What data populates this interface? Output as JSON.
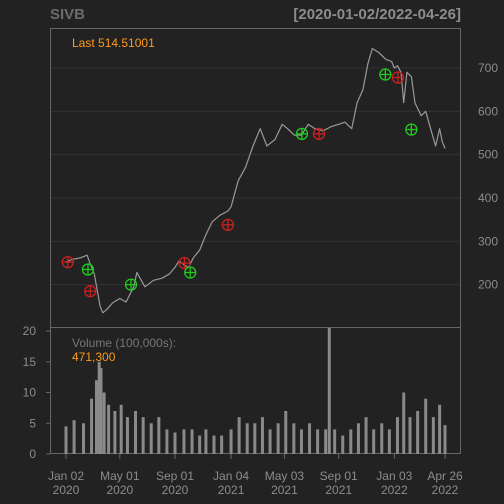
{
  "chart_data": {
    "type": "line",
    "title": "SIVB",
    "date_range": "[2020-01-02/2022-04-26]",
    "last_label": "Last 514.51001",
    "colors": {
      "background": "#222222",
      "price_line": "#999999",
      "buy_marker": "#1fcc1f",
      "sell_marker": "#cc2020",
      "last_label": "#ff9a1a",
      "volume_bars": "#8a8a8a",
      "grid": "#333333",
      "axis_text": "#8c8c8c"
    },
    "x_ticks": [
      {
        "date": "2020-01-02",
        "line1": "Jan 02",
        "line2": "2020"
      },
      {
        "date": "2020-05-01",
        "line1": "May 01",
        "line2": "2020"
      },
      {
        "date": "2020-09-01",
        "line1": "Sep 01",
        "line2": "2020"
      },
      {
        "date": "2021-01-04",
        "line1": "Jan 04",
        "line2": "2021"
      },
      {
        "date": "2021-05-03",
        "line1": "May 03",
        "line2": "2021"
      },
      {
        "date": "2021-09-01",
        "line1": "Sep 01",
        "line2": "2021"
      },
      {
        "date": "2022-01-03",
        "line1": "Jan 03",
        "line2": "2022"
      },
      {
        "date": "2022-04-26",
        "line1": "Apr 26",
        "line2": "2022"
      }
    ],
    "price_panel": {
      "y_ticks": [
        200,
        300,
        400,
        500,
        600,
        700
      ],
      "ylim": [
        100,
        790
      ],
      "grid": true,
      "series": [
        {
          "values": [
            [
              "2020-01-02",
              252
            ],
            [
              "2020-01-15",
              258
            ],
            [
              "2020-02-03",
              262
            ],
            [
              "2020-02-18",
              268
            ],
            [
              "2020-02-25",
              248
            ],
            [
              "2020-03-05",
              225
            ],
            [
              "2020-03-12",
              185
            ],
            [
              "2020-03-18",
              150
            ],
            [
              "2020-03-24",
              135
            ],
            [
              "2020-04-01",
              142
            ],
            [
              "2020-04-15",
              158
            ],
            [
              "2020-05-01",
              168
            ],
            [
              "2020-05-15",
              160
            ],
            [
              "2020-06-01",
              195
            ],
            [
              "2020-06-08",
              228
            ],
            [
              "2020-06-26",
              195
            ],
            [
              "2020-07-15",
              210
            ],
            [
              "2020-08-03",
              215
            ],
            [
              "2020-08-20",
              225
            ],
            [
              "2020-09-01",
              240
            ],
            [
              "2020-09-10",
              255
            ],
            [
              "2020-09-22",
              245
            ],
            [
              "2020-10-01",
              240
            ],
            [
              "2020-10-12",
              262
            ],
            [
              "2020-10-26",
              280
            ],
            [
              "2020-11-09",
              315
            ],
            [
              "2020-11-23",
              345
            ],
            [
              "2020-12-10",
              360
            ],
            [
              "2020-12-28",
              370
            ],
            [
              "2021-01-04",
              380
            ],
            [
              "2021-01-20",
              440
            ],
            [
              "2021-02-05",
              470
            ],
            [
              "2021-02-22",
              520
            ],
            [
              "2021-03-10",
              560
            ],
            [
              "2021-03-25",
              520
            ],
            [
              "2021-04-12",
              535
            ],
            [
              "2021-04-28",
              570
            ],
            [
              "2021-05-10",
              560
            ],
            [
              "2021-05-25",
              545
            ],
            [
              "2021-06-10",
              545
            ],
            [
              "2021-06-25",
              570
            ],
            [
              "2021-07-10",
              560
            ],
            [
              "2021-07-28",
              555
            ],
            [
              "2021-08-16",
              565
            ],
            [
              "2021-09-01",
              570
            ],
            [
              "2021-09-15",
              575
            ],
            [
              "2021-09-30",
              560
            ],
            [
              "2021-10-12",
              620
            ],
            [
              "2021-10-25",
              650
            ],
            [
              "2021-11-05",
              710
            ],
            [
              "2021-11-15",
              745
            ],
            [
              "2021-11-30",
              735
            ],
            [
              "2021-12-15",
              720
            ],
            [
              "2021-12-28",
              715
            ],
            [
              "2022-01-03",
              700
            ],
            [
              "2022-01-10",
              705
            ],
            [
              "2022-01-18",
              690
            ],
            [
              "2022-01-24",
              620
            ],
            [
              "2022-01-31",
              690
            ],
            [
              "2022-02-10",
              680
            ],
            [
              "2022-02-18",
              620
            ],
            [
              "2022-03-04",
              590
            ],
            [
              "2022-03-14",
              600
            ],
            [
              "2022-03-25",
              560
            ],
            [
              "2022-04-05",
              520
            ],
            [
              "2022-04-14",
              560
            ],
            [
              "2022-04-20",
              530
            ],
            [
              "2022-04-26",
              514.51
            ]
          ]
        }
      ],
      "buy_signals": [
        [
          "2020-02-20",
          235
        ],
        [
          "2020-05-26",
          200
        ],
        [
          "2020-10-05",
          228
        ],
        [
          "2021-06-11",
          548
        ],
        [
          "2021-12-14",
          685
        ],
        [
          "2022-02-10",
          558
        ]
      ],
      "sell_signals": [
        [
          "2020-01-06",
          252
        ],
        [
          "2020-02-25",
          185
        ],
        [
          "2020-09-22",
          250
        ],
        [
          "2020-12-28",
          338
        ],
        [
          "2021-07-19",
          548
        ],
        [
          "2022-01-11",
          678
        ]
      ]
    },
    "volume_panel": {
      "label": "Volume (100,000s):",
      "last_value": "471,300",
      "y_ticks": [
        0,
        5,
        10,
        15,
        20
      ],
      "ylim": [
        0,
        20.5
      ],
      "values": [
        [
          "2020-01-02",
          4.5
        ],
        [
          "2020-01-20",
          5.5
        ],
        [
          "2020-02-10",
          5
        ],
        [
          "2020-02-28",
          9
        ],
        [
          "2020-03-10",
          12
        ],
        [
          "2020-03-16",
          15
        ],
        [
          "2020-03-20",
          14
        ],
        [
          "2020-03-27",
          10
        ],
        [
          "2020-04-06",
          8
        ],
        [
          "2020-04-20",
          7
        ],
        [
          "2020-05-04",
          8
        ],
        [
          "2020-05-18",
          6
        ],
        [
          "2020-06-05",
          7
        ],
        [
          "2020-06-22",
          6
        ],
        [
          "2020-07-10",
          5
        ],
        [
          "2020-07-27",
          6
        ],
        [
          "2020-08-14",
          4
        ],
        [
          "2020-09-01",
          3.5
        ],
        [
          "2020-09-21",
          4
        ],
        [
          "2020-10-09",
          4
        ],
        [
          "2020-10-26",
          3
        ],
        [
          "2020-11-09",
          4
        ],
        [
          "2020-11-27",
          3
        ],
        [
          "2020-12-14",
          3
        ],
        [
          "2021-01-04",
          4
        ],
        [
          "2021-01-22",
          6
        ],
        [
          "2021-02-09",
          5
        ],
        [
          "2021-02-26",
          5
        ],
        [
          "2021-03-15",
          6
        ],
        [
          "2021-04-01",
          4
        ],
        [
          "2021-04-19",
          5
        ],
        [
          "2021-05-06",
          7
        ],
        [
          "2021-05-24",
          5
        ],
        [
          "2021-06-10",
          4
        ],
        [
          "2021-06-28",
          5
        ],
        [
          "2021-07-16",
          4
        ],
        [
          "2021-08-03",
          4
        ],
        [
          "2021-08-11",
          20.5
        ],
        [
          "2021-08-23",
          4
        ],
        [
          "2021-09-10",
          3
        ],
        [
          "2021-09-28",
          4
        ],
        [
          "2021-10-15",
          5
        ],
        [
          "2021-11-01",
          6
        ],
        [
          "2021-11-18",
          4
        ],
        [
          "2021-12-06",
          5
        ],
        [
          "2021-12-23",
          4
        ],
        [
          "2022-01-10",
          6
        ],
        [
          "2022-01-24",
          10
        ],
        [
          "2022-02-07",
          6
        ],
        [
          "2022-02-24",
          7
        ],
        [
          "2022-03-14",
          9
        ],
        [
          "2022-03-31",
          6
        ],
        [
          "2022-04-14",
          8
        ],
        [
          "2022-04-26",
          4.7
        ]
      ]
    }
  }
}
